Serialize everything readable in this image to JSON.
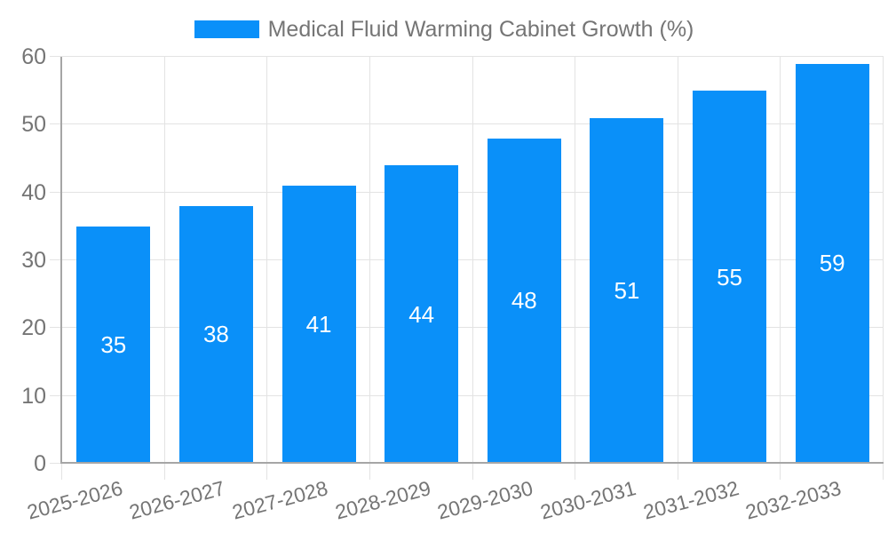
{
  "chart_data": {
    "type": "bar",
    "title": "Medical Fluid Warming Cabinet Growth (%)",
    "categories": [
      "2025-2026",
      "2026-2027",
      "2027-2028",
      "2028-2029",
      "2029-2030",
      "2030-2031",
      "2031-2032",
      "2032-2033"
    ],
    "values": [
      35,
      38,
      41,
      44,
      48,
      51,
      55,
      59
    ],
    "xlabel": "",
    "ylabel": "",
    "ylim": [
      0,
      60
    ],
    "ytick_step": 10,
    "yticks": [
      0,
      10,
      20,
      30,
      40,
      50,
      60
    ],
    "grid": true,
    "legend_position": "top-center",
    "bar_value_labels_inside": true,
    "colors": {
      "bar": "#0a90f9",
      "bar_label": "#ffffff",
      "axis_text": "#757575",
      "grid_line": "#e3e3e3",
      "axis_line": "#a6a6a6",
      "background": "#ffffff"
    }
  }
}
